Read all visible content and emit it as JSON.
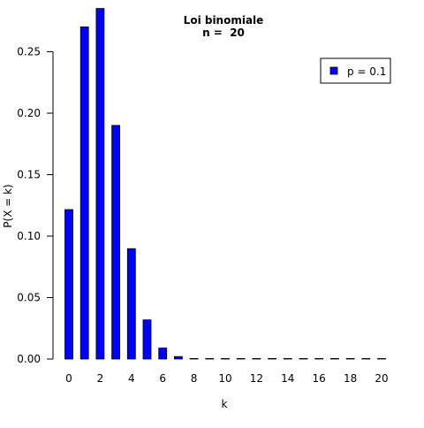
{
  "chart_data": {
    "type": "bar",
    "title": "Loi binomiale",
    "subtitle": "n =  20",
    "xlabel": "k",
    "ylabel": "P(X = k)",
    "x": [
      0,
      1,
      2,
      3,
      4,
      5,
      6,
      7,
      8,
      9,
      10,
      11,
      12,
      13,
      14,
      15,
      16,
      17,
      18,
      19,
      20
    ],
    "series": [
      {
        "name": "p = 0.1",
        "color": "#0000ff",
        "values": [
          0.1216,
          0.2702,
          0.2852,
          0.1901,
          0.0898,
          0.0319,
          0.0089,
          0.002,
          0.0004,
          0.0001,
          0,
          0,
          0,
          0,
          0,
          0,
          0,
          0,
          0,
          0,
          0
        ]
      }
    ],
    "xticks": [
      "0",
      "2",
      "4",
      "6",
      "8",
      "10",
      "12",
      "14",
      "16",
      "18",
      "20"
    ],
    "yticks": [
      "0.00",
      "0.05",
      "0.10",
      "0.15",
      "0.20",
      "0.25"
    ],
    "ylim": [
      0,
      0.285
    ],
    "xlim": [
      -1,
      20.5
    ],
    "grid": false,
    "legend_position": "top-right"
  }
}
